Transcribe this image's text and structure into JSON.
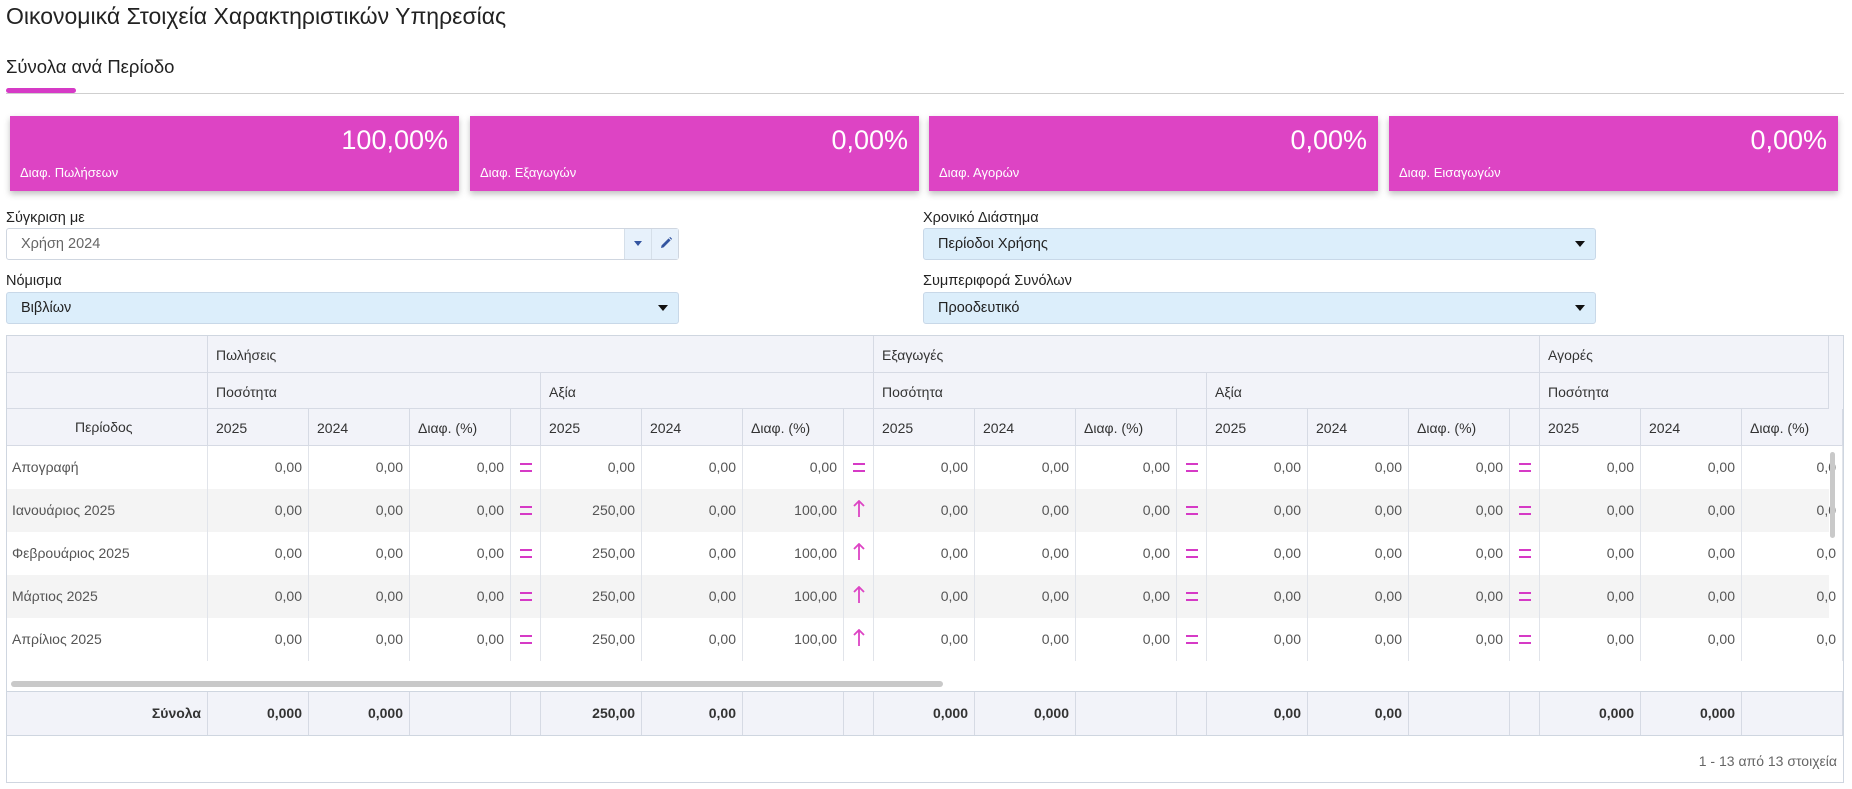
{
  "page": {
    "title": "Οικονομικά Στοιχεία Χαρακτηριστικών Υπηρεσίας"
  },
  "tabs": [
    {
      "label": "Σύνολα ανά Περίοδο",
      "active": true
    }
  ],
  "accent_color": "#dd44c4",
  "cards": [
    {
      "value": "100,00%",
      "label": "Διαφ. Πωλήσεων"
    },
    {
      "value": "0,00%",
      "label": "Διαφ. Εξαγωγών"
    },
    {
      "value": "0,00%",
      "label": "Διαφ. Αγορών"
    },
    {
      "value": "0,00%",
      "label": "Διαφ. Εισαγωγών"
    }
  ],
  "filters": {
    "compare": {
      "label": "Σύγκριση με",
      "value": "Χρήση 2024"
    },
    "period": {
      "label": "Χρονικό Διάστημα",
      "value": "Περίοδοι Χρήσης"
    },
    "currency": {
      "label": "Νόμισμα",
      "value": "Βιβλίων"
    },
    "totals": {
      "label": "Συμπεριφορά Συνόλων",
      "value": "Προοδευτικό"
    }
  },
  "grid": {
    "groups": [
      "Πωλήσεις",
      "Εξαγωγές",
      "Αγορές"
    ],
    "subgroups": [
      "Ποσότητα",
      "Αξία",
      "Ποσότητα",
      "Αξία",
      "Ποσότητα"
    ],
    "period_header": "Περίοδος",
    "col_headers": [
      "2025",
      "2024",
      "Διαφ. (%)"
    ],
    "rows": [
      {
        "period": "Απογραφή",
        "values": [
          "0,00",
          "0,00",
          "0,00",
          "0,00",
          "0,00",
          "0,00",
          "0,00",
          "0,00",
          "0,00",
          "0,00",
          "0,00",
          "0,00",
          "0,00",
          "0,00",
          "0,0"
        ],
        "indicators": [
          "equal",
          "equal",
          "equal",
          "equal"
        ]
      },
      {
        "period": "Ιανουάριος 2025",
        "values": [
          "0,00",
          "0,00",
          "0,00",
          "250,00",
          "0,00",
          "100,00",
          "0,00",
          "0,00",
          "0,00",
          "0,00",
          "0,00",
          "0,00",
          "0,00",
          "0,00",
          "0,0"
        ],
        "indicators": [
          "equal",
          "up",
          "equal",
          "equal"
        ]
      },
      {
        "period": "Φεβρουάριος 2025",
        "values": [
          "0,00",
          "0,00",
          "0,00",
          "250,00",
          "0,00",
          "100,00",
          "0,00",
          "0,00",
          "0,00",
          "0,00",
          "0,00",
          "0,00",
          "0,00",
          "0,00",
          "0,0"
        ],
        "indicators": [
          "equal",
          "up",
          "equal",
          "equal"
        ]
      },
      {
        "period": "Μάρτιος 2025",
        "values": [
          "0,00",
          "0,00",
          "0,00",
          "250,00",
          "0,00",
          "100,00",
          "0,00",
          "0,00",
          "0,00",
          "0,00",
          "0,00",
          "0,00",
          "0,00",
          "0,00",
          "0,0"
        ],
        "indicators": [
          "equal",
          "up",
          "equal",
          "equal"
        ]
      },
      {
        "period": "Απρίλιος 2025",
        "values": [
          "0,00",
          "0,00",
          "0,00",
          "250,00",
          "0,00",
          "100,00",
          "0,00",
          "0,00",
          "0,00",
          "0,00",
          "0,00",
          "0,00",
          "0,00",
          "0,00",
          "0,0"
        ],
        "indicators": [
          "equal",
          "up",
          "equal",
          "equal"
        ]
      }
    ],
    "totals_label": "Σύνολα",
    "totals": [
      "0,000",
      "0,000",
      "",
      "250,00",
      "0,00",
      "",
      "0,000",
      "0,000",
      "",
      "0,00",
      "0,00",
      "",
      "0,000",
      "0,000",
      ""
    ]
  },
  "pager": {
    "text": "1 - 13 από 13 στοιχεία"
  }
}
